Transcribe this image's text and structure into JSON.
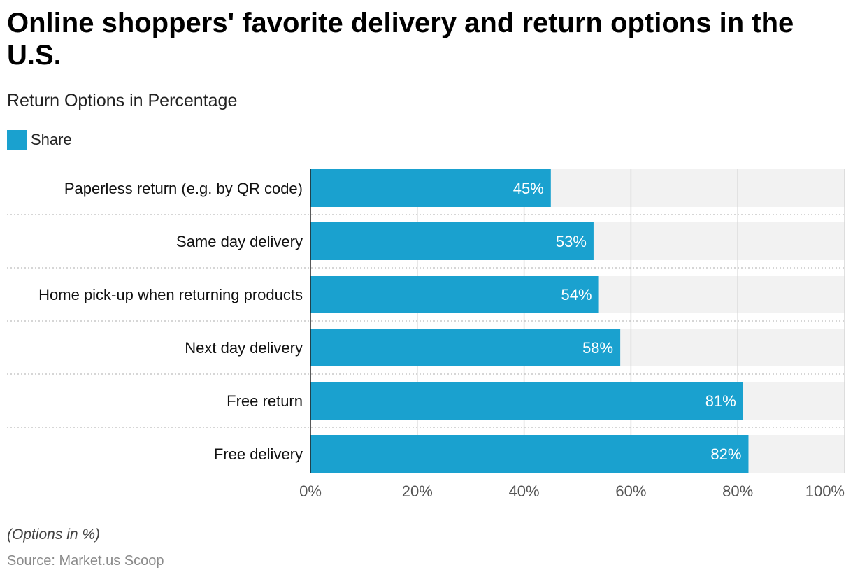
{
  "header": {
    "title": "Online shoppers' favorite delivery and return options in the U.S.",
    "subtitle": "Return Options in Percentage"
  },
  "legend": {
    "label": "Share"
  },
  "footer": {
    "note": "(Options in %)",
    "source": "Source: Market.us Scoop"
  },
  "colors": {
    "bar": "#1aa1cf",
    "track": "#f2f2f2",
    "grid": "#d6d6d6"
  },
  "chart_data": {
    "type": "bar",
    "orientation": "horizontal",
    "categories": [
      "Paperless return (e.g. by QR code)",
      "Same day delivery",
      "Home pick-up when returning products",
      "Next day delivery",
      "Free return",
      "Free delivery"
    ],
    "series": [
      {
        "name": "Share",
        "values": [
          45,
          53,
          54,
          58,
          81,
          82
        ]
      }
    ],
    "data_labels": [
      "45%",
      "53%",
      "54%",
      "58%",
      "81%",
      "82%"
    ],
    "xlim": [
      0,
      100
    ],
    "x_ticks": [
      0,
      20,
      40,
      60,
      80,
      100
    ],
    "x_tick_labels": [
      "0%",
      "20%",
      "40%",
      "60%",
      "80%",
      "100%"
    ],
    "grid": true,
    "legend_position": "top-left"
  }
}
